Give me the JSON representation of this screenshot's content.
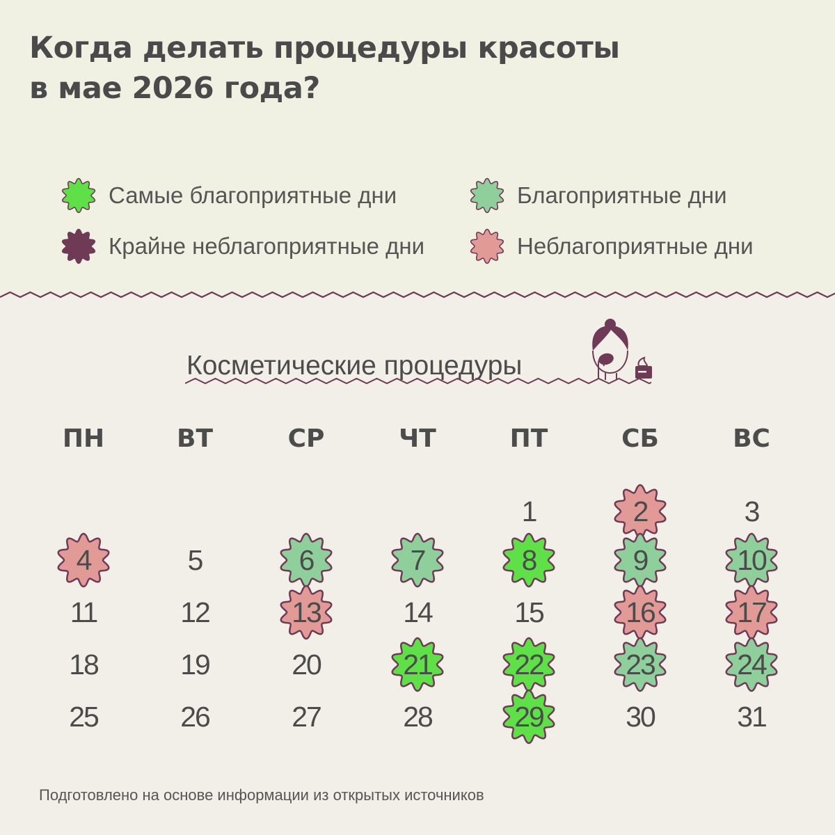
{
  "header": {
    "title_line1": "Когда делать процедуры красоты",
    "title_line2": "в мае 2026 года?"
  },
  "colors": {
    "most_favorable": "#5fdf48",
    "favorable": "#8ecf9c",
    "extremely_unfavorable": "#6e3a56",
    "unfavorable": "#e19a96",
    "outline": "#6e3a56",
    "top_background": "#f1f1e3",
    "bottom_background": "#f2efe8"
  },
  "legend": {
    "items": [
      {
        "key": "most_favorable",
        "label": "Самые благоприятные дни",
        "icon": "flower-badge-icon"
      },
      {
        "key": "favorable",
        "label": "Благоприятные дни",
        "icon": "flower-badge-icon"
      },
      {
        "key": "extremely_unfavorable",
        "label": "Крайне неблагоприятные дни",
        "icon": "flower-badge-icon"
      },
      {
        "key": "unfavorable",
        "label": "Неблагоприятные дни",
        "icon": "flower-badge-icon"
      }
    ]
  },
  "section": {
    "title": "Косметические процедуры",
    "illustration": "woman-skincare-icon"
  },
  "calendar": {
    "month": "май 2026",
    "weekdays": [
      "ПН",
      "ВТ",
      "СР",
      "ЧТ",
      "ПТ",
      "СБ",
      "ВС"
    ],
    "days": [
      {
        "day": 1,
        "weekday": 4,
        "week": 0,
        "type": null
      },
      {
        "day": 2,
        "weekday": 5,
        "week": 0,
        "type": "unfavorable"
      },
      {
        "day": 3,
        "weekday": 6,
        "week": 0,
        "type": null
      },
      {
        "day": 4,
        "weekday": 0,
        "week": 1,
        "type": "unfavorable"
      },
      {
        "day": 5,
        "weekday": 1,
        "week": 1,
        "type": null
      },
      {
        "day": 6,
        "weekday": 2,
        "week": 1,
        "type": "favorable"
      },
      {
        "day": 7,
        "weekday": 3,
        "week": 1,
        "type": "favorable"
      },
      {
        "day": 8,
        "weekday": 4,
        "week": 1,
        "type": "most_favorable"
      },
      {
        "day": 9,
        "weekday": 5,
        "week": 1,
        "type": "favorable"
      },
      {
        "day": 10,
        "weekday": 6,
        "week": 1,
        "type": "favorable"
      },
      {
        "day": 11,
        "weekday": 0,
        "week": 2,
        "type": null
      },
      {
        "day": 12,
        "weekday": 1,
        "week": 2,
        "type": null
      },
      {
        "day": 13,
        "weekday": 2,
        "week": 2,
        "type": "unfavorable"
      },
      {
        "day": 14,
        "weekday": 3,
        "week": 2,
        "type": null
      },
      {
        "day": 15,
        "weekday": 4,
        "week": 2,
        "type": null
      },
      {
        "day": 16,
        "weekday": 5,
        "week": 2,
        "type": "unfavorable"
      },
      {
        "day": 17,
        "weekday": 6,
        "week": 2,
        "type": "unfavorable"
      },
      {
        "day": 18,
        "weekday": 0,
        "week": 3,
        "type": null
      },
      {
        "day": 19,
        "weekday": 1,
        "week": 3,
        "type": null
      },
      {
        "day": 20,
        "weekday": 2,
        "week": 3,
        "type": null
      },
      {
        "day": 21,
        "weekday": 3,
        "week": 3,
        "type": "most_favorable"
      },
      {
        "day": 22,
        "weekday": 4,
        "week": 3,
        "type": "most_favorable"
      },
      {
        "day": 23,
        "weekday": 5,
        "week": 3,
        "type": "favorable"
      },
      {
        "day": 24,
        "weekday": 6,
        "week": 3,
        "type": "favorable"
      },
      {
        "day": 25,
        "weekday": 0,
        "week": 4,
        "type": null
      },
      {
        "day": 26,
        "weekday": 1,
        "week": 4,
        "type": null
      },
      {
        "day": 27,
        "weekday": 2,
        "week": 4,
        "type": null
      },
      {
        "day": 28,
        "weekday": 3,
        "week": 4,
        "type": null
      },
      {
        "day": 29,
        "weekday": 4,
        "week": 4,
        "type": "most_favorable"
      },
      {
        "day": 30,
        "weekday": 5,
        "week": 4,
        "type": null
      },
      {
        "day": 31,
        "weekday": 6,
        "week": 4,
        "type": null
      }
    ]
  },
  "footer": {
    "source_note": "Подготовлено на основе информации из открытых источников"
  }
}
